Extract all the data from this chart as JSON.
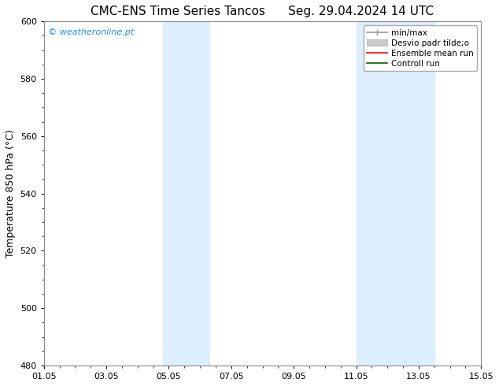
{
  "title": "CMC-ENS Time Series Tancos      Seg. 29.04.2024 14 UTC",
  "ylabel": "Temperature 850 hPa (°C)",
  "ylim": [
    480,
    600
  ],
  "yticks": [
    480,
    500,
    520,
    540,
    560,
    580,
    600
  ],
  "xtick_labels": [
    "01.05",
    "03.05",
    "05.05",
    "07.05",
    "09.05",
    "11.05",
    "13.05",
    "15.05"
  ],
  "xtick_positions": [
    0,
    2,
    4,
    6,
    8,
    10,
    12,
    14
  ],
  "xlim": [
    0,
    14
  ],
  "shaded_regions": [
    {
      "x_start": 3.8,
      "x_end": 5.3
    },
    {
      "x_start": 10.0,
      "x_end": 12.5
    }
  ],
  "shaded_color": "#ddeeff",
  "bg_color": "#ffffff",
  "watermark_text": "© weatheronline.pt",
  "watermark_color": "#1e90ff",
  "title_fontsize": 11,
  "tick_fontsize": 8,
  "ylabel_fontsize": 9,
  "legend_fontsize": 7.5
}
